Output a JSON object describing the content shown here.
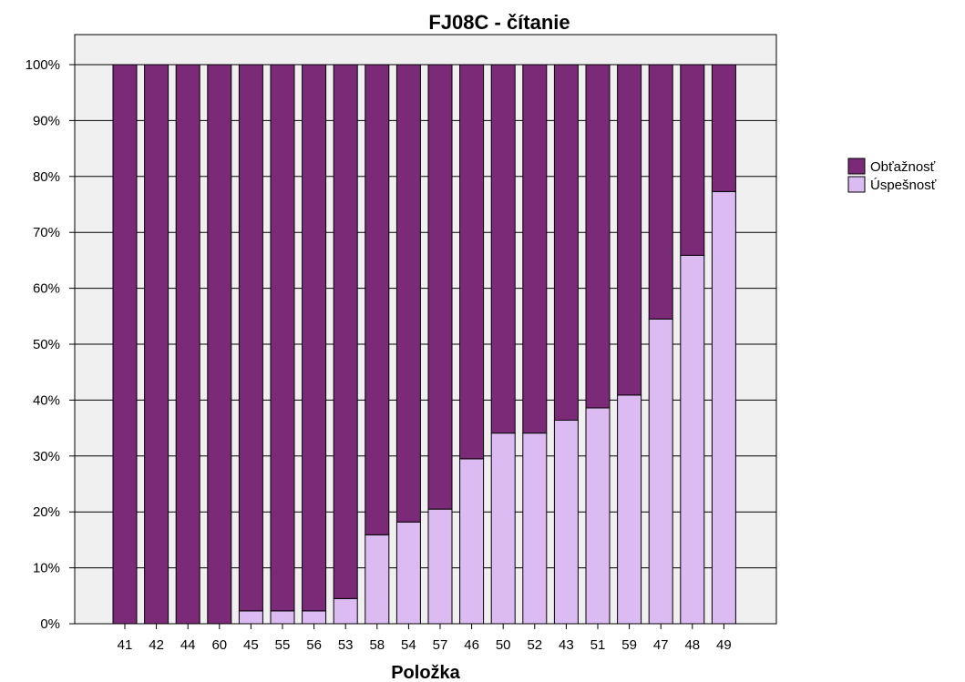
{
  "chart_data": {
    "type": "bar",
    "stacked": true,
    "title": "FJ08C - čítanie",
    "xlabel": "Položka",
    "ylabel": "",
    "categories": [
      "41",
      "42",
      "44",
      "60",
      "45",
      "55",
      "56",
      "53",
      "58",
      "54",
      "57",
      "46",
      "50",
      "52",
      "43",
      "51",
      "59",
      "47",
      "48",
      "49"
    ],
    "series": [
      {
        "name": "Úspešnosť",
        "color": "#dcbaf2",
        "values": [
          0,
          0,
          0,
          0,
          2.3,
          2.3,
          2.3,
          4.5,
          15.9,
          18.2,
          20.5,
          29.5,
          34.1,
          34.1,
          36.4,
          38.6,
          40.9,
          54.5,
          65.9,
          77.3
        ]
      },
      {
        "name": "Obťažnosť",
        "color": "#7b2a78",
        "values": [
          100,
          100,
          100,
          100,
          97.7,
          97.7,
          97.7,
          95.5,
          84.1,
          81.8,
          79.5,
          70.5,
          65.9,
          65.9,
          63.6,
          61.4,
          59.1,
          45.5,
          34.1,
          22.7
        ]
      }
    ],
    "ylim": [
      0,
      100
    ],
    "yticks": [
      "0%",
      "10%",
      "20%",
      "30%",
      "40%",
      "50%",
      "60%",
      "70%",
      "80%",
      "90%",
      "100%"
    ],
    "grid": true,
    "legend_position": "right",
    "legend_order": [
      "Obťažnosť",
      "Úspešnosť"
    ],
    "plot_background": "#f0f0f0"
  }
}
